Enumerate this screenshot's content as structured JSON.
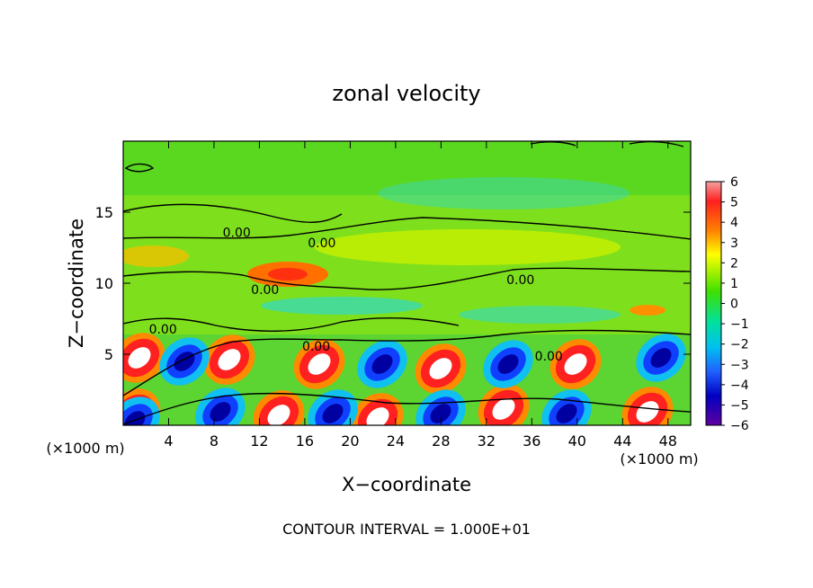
{
  "chart_data": {
    "type": "heatmap",
    "title": "zonal velocity",
    "xlabel": "X−coordinate",
    "ylabel": "Z−coordinate",
    "x_unit": "(×1000 m)",
    "x_unit_right": "(×1000 m)",
    "footer": "CONTOUR INTERVAL = 1.000E+01",
    "x_ticks": [
      "4",
      "8",
      "12",
      "16",
      "20",
      "24",
      "28",
      "32",
      "36",
      "40",
      "44",
      "48"
    ],
    "x_tick_values": [
      4,
      8,
      12,
      16,
      20,
      24,
      28,
      32,
      36,
      40,
      44,
      48
    ],
    "y_ticks": [
      "5",
      "10",
      "15"
    ],
    "y_tick_values": [
      5,
      10,
      15
    ],
    "xlim": [
      0,
      50
    ],
    "ylim": [
      0,
      20
    ],
    "colorbar": {
      "ticks": [
        "6",
        "5",
        "4",
        "3",
        "2",
        "1",
        "0",
        "−1",
        "−2",
        "−3",
        "−4",
        "−5",
        "−6"
      ],
      "range": [
        -6,
        6
      ]
    },
    "contour_labels": [
      {
        "text": "0.00",
        "x": 10,
        "z": 13.5
      },
      {
        "text": "0.00",
        "x": 17.5,
        "z": 12.8
      },
      {
        "text": "0.00",
        "x": 12.5,
        "z": 9.5
      },
      {
        "text": "0.00",
        "x": 3.5,
        "z": 6.7
      },
      {
        "text": "0.00",
        "x": 17,
        "z": 5.5
      },
      {
        "text": "0.00",
        "x": 35,
        "z": 10.2
      },
      {
        "text": "0.00",
        "x": 37.5,
        "z": 4.8
      }
    ]
  }
}
